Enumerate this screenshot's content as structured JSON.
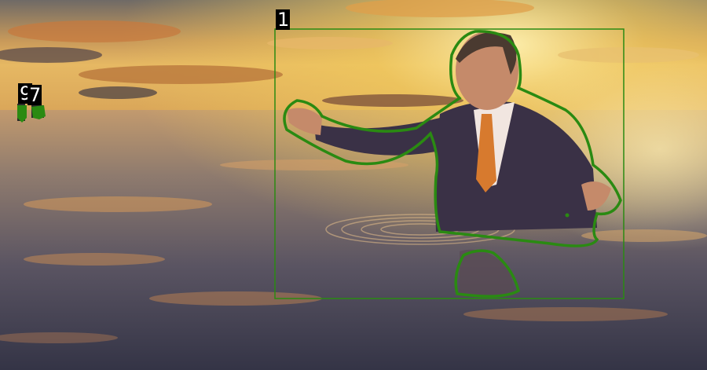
{
  "annotations": [
    {
      "id": "1",
      "label": "1",
      "color": "#2a8a12"
    },
    {
      "id": "9",
      "label": "9",
      "color": "#2a8a12"
    },
    {
      "id": "7",
      "label": "7",
      "color": "#2a8a12"
    }
  ],
  "colors": {
    "sky_top": "#6f6a66",
    "sky_glow": "#f2cc5c",
    "horizon": "#d8a458",
    "water_mid": "#8f7b6e",
    "water_deep": "#3a3a4c",
    "suit": "#3a3146",
    "tie": "#d77a2e",
    "skin": "#c58a6a",
    "mask_outline": "#2a8a12"
  }
}
